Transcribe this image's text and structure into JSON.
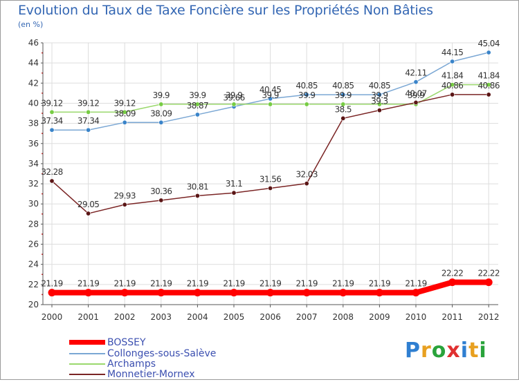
{
  "title": "Evolution du Taux de Taxe Foncière sur les Propriétés Non Bâties",
  "unit": "(en %)",
  "logo": {
    "text": "Proxiti",
    "letters": [
      "P",
      "r",
      "o",
      "x",
      "i",
      "t",
      "i"
    ],
    "colors": [
      "#2f7fd1",
      "#e8a020",
      "#2aa33b",
      "#e03030",
      "#2f7fd1",
      "#e8a020",
      "#2aa33b"
    ]
  },
  "chart_data": {
    "type": "line",
    "title": "Evolution du Taux de Taxe Foncière sur les Propriétés Non Bâties",
    "ylabel": "(en %)",
    "ylim": [
      20,
      46
    ],
    "yticks": [
      20,
      22,
      24,
      26,
      28,
      30,
      32,
      34,
      36,
      38,
      40,
      42,
      44,
      46
    ],
    "categories": [
      "2000",
      "2001",
      "2002",
      "2003",
      "2004",
      "2005",
      "2006",
      "2007",
      "2008",
      "2009",
      "2010",
      "2011",
      "2012"
    ],
    "grid": true,
    "legend_position": "bottom-left",
    "series": [
      {
        "name": "Collonges-sous-Salève",
        "color": "#7aa7d4",
        "marker": "#3a84c9",
        "values": [
          37.34,
          37.34,
          38.09,
          38.09,
          38.87,
          39.66,
          40.45,
          40.85,
          40.85,
          40.85,
          42.11,
          44.15,
          45.04
        ],
        "labels": [
          "37.34",
          "37.34",
          "38.09",
          "38.09",
          "38.87",
          "39.66",
          "40.45",
          "40.85",
          "40.85",
          "40.85",
          "42.11",
          "44.15",
          "45.04"
        ]
      },
      {
        "name": "Archamps",
        "color": "#9ad86c",
        "marker": "#77cc44",
        "values": [
          39.12,
          39.12,
          39.12,
          39.9,
          39.9,
          39.9,
          39.9,
          39.9,
          39.9,
          39.9,
          39.9,
          41.84,
          41.84
        ],
        "labels": [
          "39.12",
          "39.12",
          "39.12",
          "39.9",
          "39.9",
          "39.9",
          "39.9",
          "39.9",
          "39.9",
          "39.9",
          "39.9",
          "41.84",
          "41.84"
        ]
      },
      {
        "name": "Monnetier-Mornex",
        "color": "#7a2424",
        "marker": "#5a1515",
        "values": [
          32.28,
          29.05,
          29.93,
          30.36,
          30.81,
          31.1,
          31.56,
          32.03,
          38.5,
          39.3,
          40.07,
          40.86,
          40.86
        ],
        "labels": [
          "32.28",
          "29.05",
          "29.93",
          "30.36",
          "30.81",
          "31.1",
          "31.56",
          "32.03",
          "38.5",
          "39.3",
          "40.07",
          "40.86",
          "40.86"
        ]
      },
      {
        "name": "BOSSEY",
        "color": "#ff0000",
        "marker": "#ff0000",
        "values": [
          21.19,
          21.19,
          21.19,
          21.19,
          21.19,
          21.19,
          21.19,
          21.19,
          21.19,
          21.19,
          21.19,
          22.22,
          22.22
        ],
        "labels": [
          "21.19",
          "21.19",
          "21.19",
          "21.19",
          "21.19",
          "21.19",
          "21.19",
          "21.19",
          "21.19",
          "21.19",
          "21.19",
          "22.22",
          "22.22"
        ]
      }
    ]
  },
  "legend": [
    {
      "name": "BOSSEY",
      "color": "#ff0000",
      "thick": true
    },
    {
      "name": "Collonges-sous-Salève",
      "color": "#7aa7d4",
      "thick": false
    },
    {
      "name": "Archamps",
      "color": "#9ad86c",
      "thick": false
    },
    {
      "name": "Monnetier-Mornex",
      "color": "#7a2424",
      "thick": false
    }
  ]
}
